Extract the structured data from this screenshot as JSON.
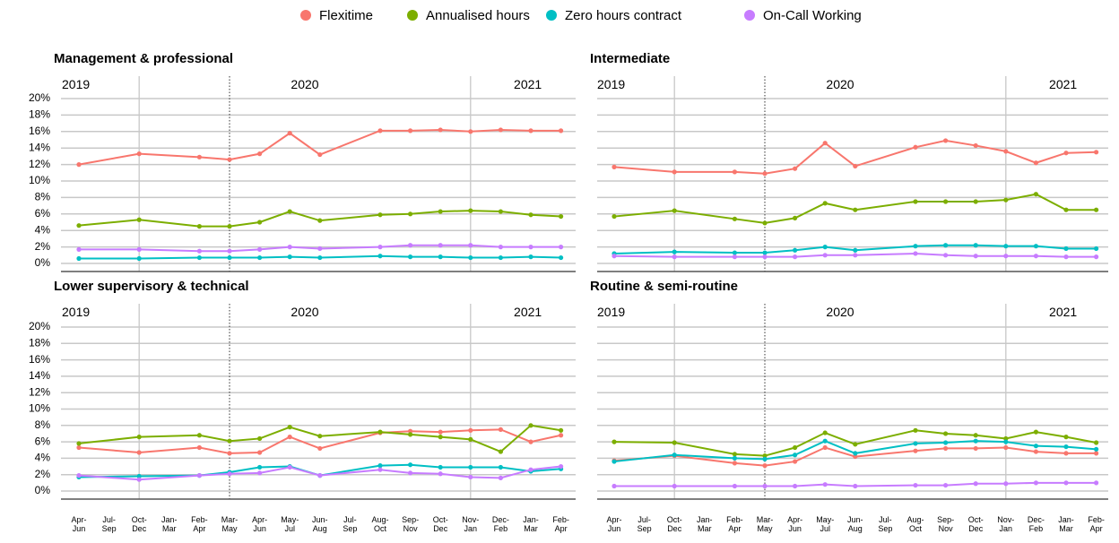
{
  "chart_data": [
    {
      "type": "line",
      "title": "Management & professional",
      "annotations": [
        "2019",
        "2020",
        "2021"
      ],
      "ylim": [
        0,
        20
      ],
      "yticks": [
        {
          "value": 0,
          "label": "0%"
        },
        {
          "value": 2,
          "label": "2%"
        },
        {
          "value": 4,
          "label": "4%"
        },
        {
          "value": 6,
          "label": "6%"
        },
        {
          "value": 8,
          "label": "8%"
        },
        {
          "value": 10,
          "label": "10%"
        },
        {
          "value": 12,
          "label": "12%"
        },
        {
          "value": 14,
          "label": "14%"
        },
        {
          "value": 16,
          "label": "16%"
        },
        {
          "value": 18,
          "label": "18%"
        },
        {
          "value": 20,
          "label": "20%"
        }
      ],
      "grid": true,
      "span_gaps": true,
      "legend": "top",
      "series": [
        {
          "name": "Flexitime",
          "color": "#F8766D",
          "values": [
            12.0,
            null,
            13.3,
            null,
            12.9,
            12.6,
            13.3,
            15.8,
            13.2,
            null,
            16.1,
            16.1,
            16.2,
            16.0,
            16.2,
            16.1,
            16.1
          ]
        },
        {
          "name": "Annualised hours",
          "color": "#7CAE00",
          "values": [
            4.6,
            null,
            5.3,
            null,
            4.5,
            4.5,
            5.0,
            6.3,
            5.2,
            null,
            5.9,
            6.0,
            6.3,
            6.4,
            6.3,
            5.9,
            5.7
          ]
        },
        {
          "name": "Zero hours contract",
          "color": "#00BFC4",
          "values": [
            0.6,
            null,
            0.6,
            null,
            0.7,
            0.7,
            0.7,
            0.8,
            0.7,
            null,
            0.9,
            0.8,
            0.8,
            0.7,
            0.7,
            0.8,
            0.7
          ]
        },
        {
          "name": "On-Call Working",
          "color": "#C77CFF",
          "values": [
            1.7,
            null,
            1.7,
            null,
            1.5,
            1.5,
            1.7,
            2.0,
            1.8,
            null,
            2.0,
            2.2,
            2.2,
            2.2,
            2.0,
            2.0,
            2.0
          ]
        }
      ]
    },
    {
      "type": "line",
      "title": "Intermediate",
      "annotations": [
        "2019",
        "2020",
        "2021"
      ],
      "ylim": [
        0,
        20
      ],
      "yticks": [
        0,
        2,
        4,
        6,
        8,
        10,
        12,
        14,
        16,
        18,
        20
      ],
      "grid": true,
      "span_gaps": true,
      "series": [
        {
          "color": "#F8766D",
          "values": [
            11.7,
            null,
            11.1,
            null,
            11.1,
            10.9,
            11.5,
            14.6,
            11.8,
            null,
            14.1,
            14.9,
            14.3,
            13.6,
            12.2,
            13.4,
            13.5
          ]
        },
        {
          "color": "#7CAE00",
          "values": [
            5.7,
            null,
            6.4,
            null,
            5.4,
            4.9,
            5.5,
            7.3,
            6.5,
            null,
            7.5,
            7.5,
            7.5,
            7.7,
            8.4,
            6.5,
            6.5
          ]
        },
        {
          "color": "#00BFC4",
          "values": [
            1.2,
            null,
            1.4,
            null,
            1.3,
            1.3,
            1.6,
            2.0,
            1.6,
            null,
            2.1,
            2.2,
            2.2,
            2.1,
            2.1,
            1.8,
            1.8
          ]
        },
        {
          "color": "#C77CFF",
          "values": [
            0.9,
            null,
            0.8,
            null,
            0.8,
            0.8,
            0.8,
            1.0,
            1.0,
            null,
            1.2,
            1.0,
            0.9,
            0.9,
            0.9,
            0.8,
            0.8
          ]
        }
      ]
    },
    {
      "type": "line",
      "title": "Lower supervisory & technical",
      "annotations": [
        "2019",
        "2020",
        "2021"
      ],
      "categories": [
        "Apr-Jun",
        "Jul-Sep",
        "Oct-Dec",
        "Jan-Mar",
        "Feb-Apr",
        "Mar-May",
        "Apr-Jun",
        "May-Jul",
        "Jun-Aug",
        "Jul-Sep",
        "Aug-Oct",
        "Sep-Nov",
        "Oct-Dec",
        "Nov-Jan",
        "Dec-Feb",
        "Jan-Mar",
        "Feb-Apr"
      ],
      "ylim": [
        0,
        20
      ],
      "yticks": [
        {
          "value": 0,
          "label": "0%"
        },
        {
          "value": 2,
          "label": "2%"
        },
        {
          "value": 4,
          "label": "4%"
        },
        {
          "value": 6,
          "label": "6%"
        },
        {
          "value": 8,
          "label": "8%"
        },
        {
          "value": 10,
          "label": "10%"
        },
        {
          "value": 12,
          "label": "12%"
        },
        {
          "value": 14,
          "label": "14%"
        },
        {
          "value": 16,
          "label": "16%"
        },
        {
          "value": 18,
          "label": "18%"
        },
        {
          "value": 20,
          "label": "20%"
        }
      ],
      "grid": true,
      "span_gaps": true,
      "series": [
        {
          "color": "#F8766D",
          "values": [
            5.3,
            null,
            4.7,
            null,
            5.3,
            4.6,
            4.7,
            6.6,
            5.2,
            null,
            7.1,
            7.3,
            7.2,
            7.4,
            7.5,
            6.0,
            6.8
          ]
        },
        {
          "color": "#7CAE00",
          "values": [
            5.8,
            null,
            6.6,
            null,
            6.8,
            6.1,
            6.4,
            7.8,
            6.7,
            null,
            7.2,
            6.9,
            6.6,
            6.3,
            4.8,
            8.0,
            7.4
          ]
        },
        {
          "color": "#00BFC4",
          "values": [
            1.7,
            null,
            1.8,
            null,
            1.9,
            2.3,
            2.9,
            3.0,
            1.9,
            null,
            3.1,
            3.2,
            2.9,
            2.9,
            2.9,
            2.4,
            2.7
          ]
        },
        {
          "color": "#C77CFF",
          "values": [
            1.9,
            null,
            1.4,
            null,
            1.9,
            2.1,
            2.2,
            2.9,
            1.9,
            null,
            2.6,
            2.2,
            2.1,
            1.7,
            1.6,
            2.6,
            3.0
          ]
        }
      ]
    },
    {
      "type": "line",
      "title": "Routine & semi-routine",
      "annotations": [
        "2019",
        "2020",
        "2021"
      ],
      "categories": [
        "Apr-Jun",
        "Jul-Sep",
        "Oct-Dec",
        "Jan-Mar",
        "Feb-Apr",
        "Mar-May",
        "Apr-Jun",
        "May-Jul",
        "Jun-Aug",
        "Jul-Sep",
        "Aug-Oct",
        "Sep-Nov",
        "Oct-Dec",
        "Nov-Jan",
        "Dec-Feb",
        "Jan-Mar",
        "Feb-Apr"
      ],
      "ylim": [
        0,
        20
      ],
      "yticks": [
        0,
        2,
        4,
        6,
        8,
        10,
        12,
        14,
        16,
        18,
        20
      ],
      "grid": true,
      "span_gaps": true,
      "series": [
        {
          "color": "#F8766D",
          "values": [
            3.7,
            null,
            4.3,
            null,
            3.4,
            3.1,
            3.6,
            5.3,
            4.2,
            null,
            4.9,
            5.2,
            5.2,
            5.3,
            4.8,
            4.6,
            4.6
          ]
        },
        {
          "color": "#7CAE00",
          "values": [
            6.0,
            null,
            5.9,
            null,
            4.5,
            4.3,
            5.3,
            7.1,
            5.7,
            null,
            7.4,
            7.0,
            6.8,
            6.4,
            7.2,
            6.6,
            5.9
          ]
        },
        {
          "color": "#00BFC4",
          "values": [
            3.6,
            null,
            4.4,
            null,
            4.0,
            3.9,
            4.4,
            6.1,
            4.6,
            null,
            5.8,
            5.9,
            6.1,
            6.0,
            5.5,
            5.4,
            5.1
          ]
        },
        {
          "color": "#C77CFF",
          "values": [
            0.6,
            null,
            0.6,
            null,
            0.6,
            0.6,
            0.6,
            0.8,
            0.6,
            null,
            0.7,
            0.7,
            0.9,
            0.9,
            1.0,
            1.0,
            1.0
          ]
        }
      ]
    }
  ]
}
